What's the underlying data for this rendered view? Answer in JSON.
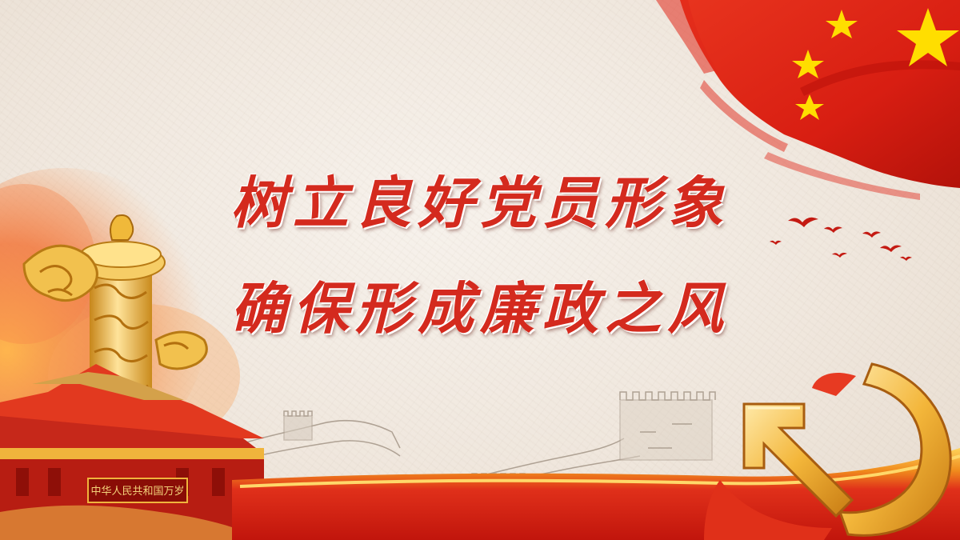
{
  "slide": {
    "title_line_1": "树立良好党员形象",
    "title_line_2": "确保形成廉政之风",
    "gate_plaque_text": "中华人民共和国万岁"
  },
  "colors": {
    "accent_red": "#d42a1e",
    "flag_red": "#d81e12",
    "star_yellow": "#ffde00",
    "gold": "#f2c14e",
    "paper": "#f4eee7"
  },
  "decorations": [
    "national-flag",
    "huabiao-column",
    "tiananmen-gate",
    "great-wall-sketch",
    "party-emblem",
    "flying-birds"
  ]
}
